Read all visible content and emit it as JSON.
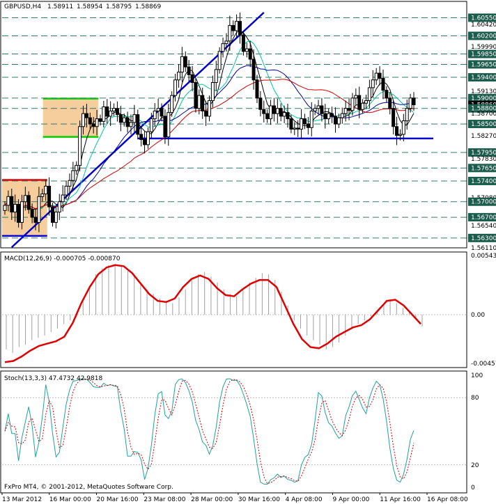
{
  "chart_data": [
    {
      "type": "candlestick",
      "title": "GBPUSD,H4",
      "header_values": [
        "1.58911",
        "1.58954",
        "1.58795",
        "1.58869"
      ],
      "ylim": [
        1.5611,
        1.6065
      ],
      "price_labels": [
        "1.60550",
        "1.60420",
        "1.60200",
        "1.59990",
        "1.59850",
        "1.59650",
        "1.59400",
        "1.59130",
        "1.59000",
        "1.58869",
        "1.58800",
        "1.58700",
        "1.58500",
        "1.58270",
        "1.57950",
        "1.57830",
        "1.57650",
        "1.57400",
        "1.57080",
        "1.57000",
        "1.56700",
        "1.56540",
        "1.56300",
        "1.56110"
      ],
      "highlighted_labels": [
        "1.60550",
        "1.60200",
        "1.59850",
        "1.59650",
        "1.59400",
        "1.59000",
        "1.58869",
        "1.58800",
        "1.58500",
        "1.57950",
        "1.57650",
        "1.57400",
        "1.57000",
        "1.56700",
        "1.56300"
      ],
      "current_price": "1.58869",
      "horizontal_levels": [
        1.6055,
        1.602,
        1.5985,
        1.5965,
        1.594,
        1.59,
        1.588,
        1.585,
        1.5795,
        1.5765,
        1.574,
        1.57,
        1.567,
        1.563
      ],
      "support_line": 1.5822,
      "annotation_boxes": [
        {
          "x0": 0,
          "x1": 12,
          "ylo": 1.5634,
          "yhi": 1.5742
        },
        {
          "x0": 12,
          "x1": 27,
          "ylo": 1.5825,
          "yhi": 1.5899
        }
      ],
      "ohlc_close": [
        1.5693,
        1.571,
        1.568,
        1.5695,
        1.566,
        1.57,
        1.5712,
        1.5685,
        1.567,
        1.566,
        1.571,
        1.5715,
        1.573,
        1.569,
        1.566,
        1.568,
        1.57,
        1.5713,
        1.573,
        1.5741,
        1.576,
        1.577,
        1.5845,
        1.587,
        1.5862,
        1.585,
        1.5845,
        1.586,
        1.5855,
        1.5883,
        1.5865,
        1.5875,
        1.588,
        1.5868,
        1.5853,
        1.5862,
        1.5845,
        1.5853,
        1.5868,
        1.583,
        1.582,
        1.581,
        1.5835,
        1.586,
        1.5875,
        1.588,
        1.5865,
        1.5825,
        1.5872,
        1.5905,
        1.5935,
        1.595,
        1.598,
        1.596,
        1.5945,
        1.593,
        1.588,
        1.5905,
        1.5875,
        1.5865,
        1.5895,
        1.593,
        1.5955,
        1.599,
        1.6005,
        1.601,
        1.604,
        1.603,
        1.6048,
        1.6022,
        1.599,
        1.5995,
        1.5975,
        1.5935,
        1.59,
        1.5878,
        1.587,
        1.586,
        1.5885,
        1.587,
        1.588,
        1.5865,
        1.5872,
        1.586,
        1.584,
        1.5842,
        1.584,
        1.586,
        1.585,
        1.5843,
        1.5875,
        1.588,
        1.5885,
        1.587,
        1.586,
        1.587,
        1.5865,
        1.585,
        1.5862,
        1.587,
        1.588,
        1.5876,
        1.59,
        1.5905,
        1.5878,
        1.589,
        1.5895,
        1.592,
        1.5935,
        1.5948,
        1.5938,
        1.5915,
        1.59,
        1.588,
        1.5845,
        1.5828,
        1.583,
        1.5856,
        1.588,
        1.59,
        1.5887
      ]
    },
    {
      "type": "line",
      "title": "MACD(12,26,9) -0.000705 -0.000870",
      "ylim": [
        -0.00457,
        0.00543
      ],
      "tick_labels": [
        "0.00543",
        "0.00",
        "-0.00457"
      ],
      "histogram": [
        -0.003,
        -0.0033,
        -0.0028,
        -0.0026,
        -0.0022,
        -0.002,
        -0.0018,
        -0.0015,
        -0.0012,
        -0.0008,
        -0.0005,
        -0.0002,
        0.0012,
        0.0025,
        0.0035,
        0.004,
        0.0043,
        0.0044,
        0.0042,
        0.0038,
        0.0034,
        0.0028,
        0.0022,
        0.0018,
        0.0014,
        0.0012,
        0.001,
        0.0015,
        0.0022,
        0.003,
        0.0035,
        0.0037,
        0.0033,
        0.0028,
        0.0022,
        0.0018,
        0.0016,
        0.0022,
        0.0028,
        0.0032,
        0.0036,
        0.0035,
        0.003,
        0.002,
        0.0008,
        -0.0005,
        -0.0012,
        -0.0018,
        -0.0022,
        -0.0026,
        -0.003,
        -0.0028,
        -0.0024,
        -0.0018,
        -0.0012,
        -0.0008,
        -0.0005,
        -0.0001,
        0.0003,
        0.0008,
        0.0012,
        0.001,
        0.0006,
        0.0002,
        -0.0004,
        -0.001
      ],
      "signal": [
        -0.0041,
        -0.004,
        -0.0036,
        -0.0031,
        -0.0027,
        -0.0025,
        -0.0023,
        -0.0019,
        -0.0007,
        0.001,
        0.0024,
        0.0035,
        0.0041,
        0.0043,
        0.0042,
        0.0036,
        0.0027,
        0.0018,
        0.0012,
        0.0011,
        0.0014,
        0.0024,
        0.0031,
        0.0034,
        0.0031,
        0.0023,
        0.0017,
        0.0016,
        0.0022,
        0.0027,
        0.003,
        0.003,
        0.0024,
        0.0008,
        -0.0008,
        -0.0021,
        -0.0028,
        -0.0029,
        -0.0025,
        -0.0019,
        -0.0015,
        -0.0011,
        -0.0009,
        -0.0004,
        0.0004,
        0.0012,
        0.0013,
        0.0008,
        0.0,
        -0.0008
      ]
    },
    {
      "type": "line",
      "title": "Stoch(13,3,3) 47.4732 42.9818",
      "ylim": [
        0,
        100
      ],
      "tick_labels": [
        "100",
        "80",
        "20",
        "0"
      ]
    }
  ],
  "x_labels": [
    "13 Mar 2012",
    "16 Mar 00:00",
    "20 Mar 16:00",
    "23 Mar 08:00",
    "28 Mar 00:00",
    "30 Mar 16:00",
    "4 Apr 08:00",
    "9 Apr 00:00",
    "11 Apr 16:00",
    "16 Apr 08:00"
  ],
  "copyright": "FxPro MT4, © 2001-2012, MetaQuotes Software Corp.",
  "colors": {
    "background": "#ffffff",
    "level_line": "#2e7d6b",
    "trend_line": "#0000d0",
    "macd_line": "#e00000",
    "highlight_green": "#00d000",
    "highlight_red": "#e00000",
    "box_fill": "#f5c48c",
    "price_label_bg": "#1c5c4c"
  }
}
